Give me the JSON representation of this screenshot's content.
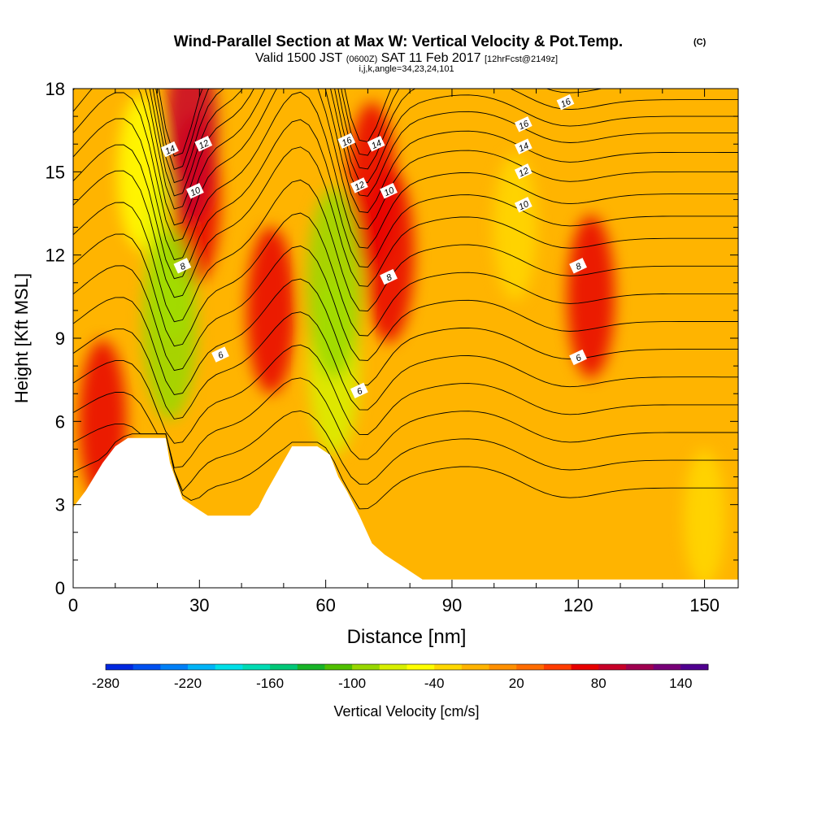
{
  "header": {
    "title": "Wind-Parallel Section at Max W: Vertical Velocity & Pot.Temp.",
    "title_unit": "(C)",
    "valid_prefix": "Valid 1500 JST",
    "valid_utc": "(0600Z)",
    "valid_date": "SAT 11 Feb 2017",
    "forecast": "[12hrFcst@2149z]",
    "indices": "i,j,k,angle=34,23,24,101"
  },
  "chart_data": {
    "type": "heatmap",
    "xlabel": "Distance [nm]",
    "ylabel": "Height [Kft MSL]",
    "xlim": [
      0,
      158
    ],
    "ylim": [
      0,
      18
    ],
    "x_ticks": [
      "0",
      "30",
      "60",
      "90",
      "120",
      "150"
    ],
    "y_ticks": [
      "0",
      "3",
      "6",
      "9",
      "12",
      "15",
      "18"
    ],
    "colorbar": {
      "label": "Vertical Velocity [cm/s]",
      "range": [
        -280,
        160
      ],
      "step": 20,
      "tick_labels": [
        "-280",
        "-220",
        "-160",
        "-100",
        "-40",
        "20",
        "80",
        "140"
      ],
      "colors": [
        "#0028e0",
        "#0050f0",
        "#0080f8",
        "#00b4f8",
        "#00e0e8",
        "#00dcb4",
        "#00c878",
        "#18b428",
        "#50c000",
        "#98d800",
        "#d8f000",
        "#ffff00",
        "#ffd800",
        "#ffb400",
        "#ff9000",
        "#ff6c00",
        "#ff3c00",
        "#e80000",
        "#c80028",
        "#a00050",
        "#780078",
        "#500090"
      ]
    },
    "velocity_features": [
      {
        "x": 23,
        "y": 9.5,
        "w": -95
      },
      {
        "x": 23,
        "y": 12,
        "w": -70
      },
      {
        "x": 16,
        "y": 15,
        "w": -50
      },
      {
        "x": 28,
        "y": 16.5,
        "w": 85
      },
      {
        "x": 29,
        "y": 14,
        "w": 70
      },
      {
        "x": 7,
        "y": 6,
        "w": 60
      },
      {
        "x": 47,
        "y": 10,
        "w": 65
      },
      {
        "x": 62,
        "y": 11,
        "w": -95
      },
      {
        "x": 62,
        "y": 8,
        "w": -80
      },
      {
        "x": 75,
        "y": 12,
        "w": 75
      },
      {
        "x": 71,
        "y": 14.5,
        "w": 65
      },
      {
        "x": 105,
        "y": 13,
        "w": -40
      },
      {
        "x": 123,
        "y": 10.5,
        "w": 60
      },
      {
        "x": 150,
        "y": 2.5,
        "w": -30
      }
    ],
    "terrain": [
      [
        0,
        2.9
      ],
      [
        3,
        3.5
      ],
      [
        7,
        4.5
      ],
      [
        10,
        5.1
      ],
      [
        13,
        5.4
      ],
      [
        22,
        5.4
      ],
      [
        23,
        4.5
      ],
      [
        26,
        3.2
      ],
      [
        29,
        2.9
      ],
      [
        32,
        2.6
      ],
      [
        42,
        2.6
      ],
      [
        44,
        2.9
      ],
      [
        46,
        3.5
      ],
      [
        49,
        4.3
      ],
      [
        52,
        5.1
      ],
      [
        58,
        5.1
      ],
      [
        61,
        4.8
      ],
      [
        63,
        4.0
      ],
      [
        65,
        3.5
      ],
      [
        68,
        2.6
      ],
      [
        71,
        1.6
      ],
      [
        74,
        1.2
      ],
      [
        77,
        0.9
      ],
      [
        80,
        0.6
      ],
      [
        83,
        0.3
      ],
      [
        158,
        0.3
      ]
    ],
    "isentrope_labels": [
      {
        "label": "14",
        "x": 23,
        "y": 15.8
      },
      {
        "label": "12",
        "x": 31,
        "y": 16.0
      },
      {
        "label": "10",
        "x": 29,
        "y": 14.3
      },
      {
        "label": "8",
        "x": 26,
        "y": 11.6
      },
      {
        "label": "6",
        "x": 35,
        "y": 8.4
      },
      {
        "label": "16",
        "x": 65,
        "y": 16.1
      },
      {
        "label": "14",
        "x": 72,
        "y": 16.0
      },
      {
        "label": "12",
        "x": 68,
        "y": 14.5
      },
      {
        "label": "10",
        "x": 75,
        "y": 14.3
      },
      {
        "label": "8",
        "x": 75,
        "y": 11.2
      },
      {
        "label": "6",
        "x": 68,
        "y": 7.1
      },
      {
        "label": "16",
        "x": 117,
        "y": 17.5
      },
      {
        "label": "16",
        "x": 107,
        "y": 16.7
      },
      {
        "label": "14",
        "x": 107,
        "y": 15.9
      },
      {
        "label": "12",
        "x": 107,
        "y": 15.0
      },
      {
        "label": "10",
        "x": 107,
        "y": 13.8
      },
      {
        "label": "8",
        "x": 120,
        "y": 11.6
      },
      {
        "label": "6",
        "x": 120,
        "y": 8.3
      }
    ]
  }
}
